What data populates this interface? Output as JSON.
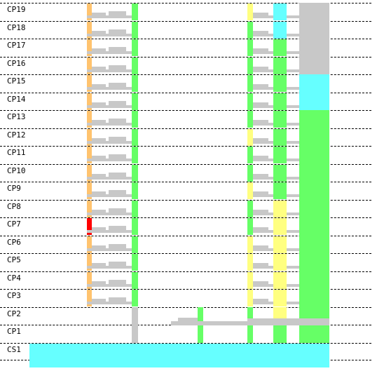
{
  "floors": [
    "CP19",
    "CP18",
    "CP17",
    "CP16",
    "CP15",
    "CP14",
    "CP13",
    "CP12",
    "CP11",
    "CP10",
    "CP9",
    "CP8",
    "CP7",
    "CP6",
    "CP5",
    "CP4",
    "CP3",
    "CP2",
    "CP1",
    "CS1"
  ],
  "colors": {
    "grey": "#c8c8c8",
    "orange": "#ffc36e",
    "red": "#ff0000",
    "green": "#66ff66",
    "yellow": "#ffff80",
    "cyan": "#66ffff",
    "line": "#000000"
  },
  "cells": {
    "left_marker": {
      "CP19": "orange",
      "CP18": "orange",
      "CP17": "orange",
      "CP16": "orange",
      "CP15": "orange",
      "CP14": "orange",
      "CP13": "orange",
      "CP12": "orange",
      "CP11": "orange",
      "CP10": "orange",
      "CP9": "orange",
      "CP8": "orange",
      "CP7": "red",
      "CP6": "orange",
      "CP5": "orange",
      "CP4": "orange",
      "CP3": "orange"
    },
    "right_marker": {
      "CP19": "yellow",
      "CP18": "green",
      "CP17": "green",
      "CP16": "green",
      "CP15": "green",
      "CP14": "green",
      "CP13": "green",
      "CP12": "yellow",
      "CP11": "green",
      "CP10": "green",
      "CP9": "yellow",
      "CP8": "green",
      "CP7": "green",
      "CP6": "yellow",
      "CP5": "yellow",
      "CP4": "yellow",
      "CP3": "yellow",
      "CP2": "green",
      "CP1": "green"
    },
    "right_unit": {
      "CP19": "cyan",
      "CP18": "cyan",
      "CP17": "green",
      "CP16": "green",
      "CP15": "green",
      "CP14": "green",
      "CP13": "green",
      "CP12": "green",
      "CP11": "green",
      "CP10": "green",
      "CP9": "green",
      "CP8": "yellow",
      "CP7": "yellow",
      "CP6": "yellow",
      "CP5": "yellow",
      "CP4": "yellow",
      "CP3": "yellow",
      "CP2": "yellow",
      "CP1": "green"
    },
    "far_right": {
      "CP19": "grey",
      "CP18": "grey",
      "CP17": "grey",
      "CP16": "grey",
      "CP15": "cyan",
      "CP14": "cyan",
      "CP13": "green",
      "CP12": "green",
      "CP11": "green",
      "CP10": "green",
      "CP9": "green",
      "CP8": "green",
      "CP7": "green",
      "CP6": "green",
      "CP5": "green",
      "CP4": "green",
      "CP3": "green",
      "CP2": "green",
      "CP1": "green"
    }
  }
}
